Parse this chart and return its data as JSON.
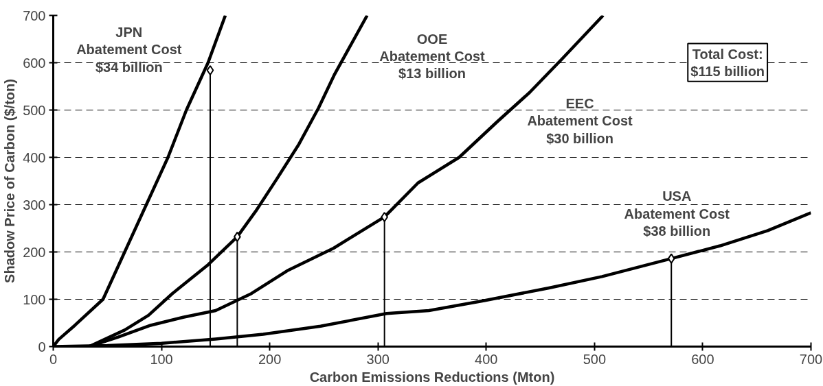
{
  "chart_data": {
    "type": "line",
    "xlabel": "Carbon Emissions Reductions (Mton)",
    "ylabel": "Shadow Price of Carbon ($/ton)",
    "xlim": [
      0,
      700
    ],
    "ylim": [
      0,
      700
    ],
    "xticks": [
      0,
      100,
      200,
      300,
      400,
      500,
      600,
      700
    ],
    "yticks": [
      0,
      100,
      200,
      300,
      400,
      500,
      600,
      700
    ],
    "grid": "y",
    "marker": "none",
    "series": [
      {
        "color": "#000000",
        "x": [
          0,
          5,
          20,
          46,
          66,
          86,
          106,
          123,
          143,
          159
        ],
        "values": [
          0,
          15,
          45,
          100,
          200,
          300,
          400,
          500,
          600,
          700
        ]
      },
      {
        "color": "#000000",
        "x": [
          33,
          66,
          88,
          110,
          143,
          170,
          187,
          207,
          227,
          245,
          260,
          290
        ],
        "values": [
          0,
          35,
          66,
          112,
          173,
          232,
          286,
          356,
          428,
          504,
          576,
          700
        ]
      },
      {
        "color": "#000000",
        "x": [
          33,
          60,
          90,
          120,
          150,
          183,
          216,
          259,
          306,
          337,
          375,
          410,
          440,
          470,
          508
        ],
        "values": [
          0,
          20,
          45,
          62,
          76,
          112,
          160,
          208,
          274,
          346,
          400,
          475,
          537,
          608,
          700
        ]
      },
      {
        "color": "#000000",
        "x": [
          0,
          50,
          100,
          150,
          194,
          247,
          308,
          347,
          398,
          458,
          507,
          571,
          616,
          660,
          700
        ],
        "values": [
          0,
          2,
          7,
          16,
          26,
          43,
          70,
          76,
          97,
          124,
          148,
          186,
          213,
          245,
          283
        ]
      },
      {
        "type": "lollipop",
        "marker": "diamond",
        "color": "#000000",
        "x": [
          145,
          170,
          306,
          571
        ],
        "values": [
          584,
          232,
          274,
          186
        ]
      }
    ],
    "annotations": [
      "JPN\nAbatement Cost\n$34 billion",
      "OOE\nAbatement Cost\n$13 billion",
      "EEC\nAbatement Cost\n$30 billion",
      "USA\nAbatement Cost\n$38 billion",
      "Total Cost:\n$115 billion"
    ]
  }
}
